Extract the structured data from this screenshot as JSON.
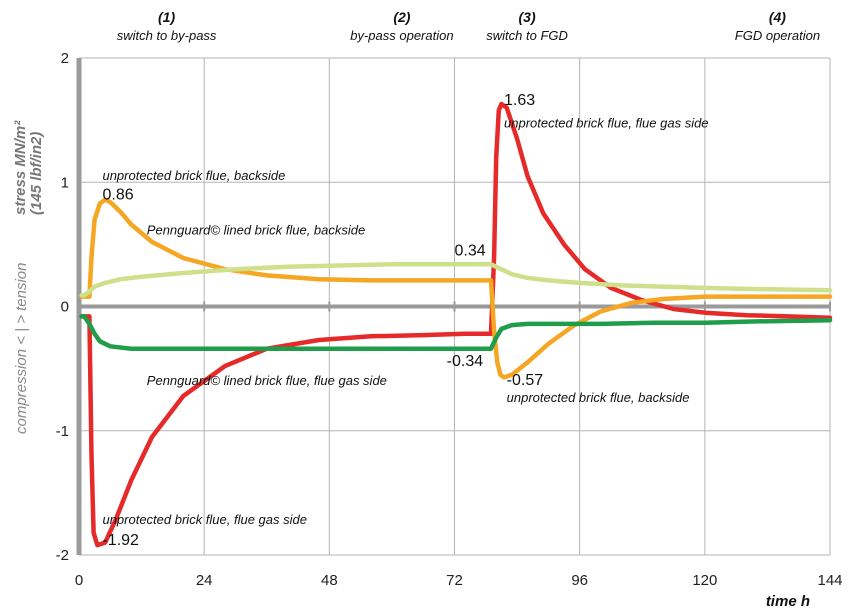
{
  "chart_data": {
    "type": "line",
    "xlabel": "time  h",
    "ylabel_lines": [
      "stress MN/m²",
      "(145 lbf/in2)"
    ],
    "ylabel_secondary": "compression < | > tension",
    "xlim": [
      0,
      144
    ],
    "ylim": [
      -2,
      2
    ],
    "x_ticks": [
      0,
      24,
      48,
      72,
      96,
      120,
      144
    ],
    "y_ticks": [
      -2,
      -1,
      0,
      1,
      2
    ],
    "grid": true,
    "phases": [
      {
        "number": "(1)",
        "label": "switch to by-pass",
        "x": 24
      },
      {
        "number": "(2)",
        "label": "by-pass operation",
        "x": 72
      },
      {
        "number": "(3)",
        "label": "switch to FGD",
        "x": 96
      },
      {
        "number": "(4)",
        "label": "FGD operation",
        "x": 144
      }
    ],
    "series": [
      {
        "name": "unprotected brick flue, flue gas side",
        "color": "#e62a2a",
        "x": [
          0.5,
          2.0,
          2.4,
          2.8,
          3.5,
          5,
          7,
          10,
          14,
          20,
          28,
          36,
          46,
          56,
          66,
          74,
          79.0,
          79.6,
          80,
          80.5,
          81,
          82,
          84,
          86,
          89,
          93,
          97,
          102,
          108,
          114,
          120,
          128,
          136,
          144
        ],
        "y": [
          -0.08,
          -0.08,
          -1.2,
          -1.82,
          -1.92,
          -1.9,
          -1.72,
          -1.4,
          -1.05,
          -0.72,
          -0.48,
          -0.34,
          -0.27,
          -0.24,
          -0.23,
          -0.22,
          -0.22,
          0.4,
          1.2,
          1.58,
          1.63,
          1.6,
          1.35,
          1.05,
          0.75,
          0.5,
          0.3,
          0.15,
          0.05,
          -0.02,
          -0.05,
          -0.07,
          -0.08,
          -0.09
        ]
      },
      {
        "name": "unprotected brick flue, backside",
        "color": "#f5a623",
        "x": [
          0.5,
          2.0,
          2.4,
          3,
          4,
          5,
          6,
          8,
          10,
          14,
          20,
          28,
          36,
          46,
          56,
          66,
          79.0,
          79.6,
          80.2,
          80.8,
          81.5,
          83,
          86,
          90,
          95,
          100,
          106,
          112,
          120,
          128,
          136,
          144
        ],
        "y": [
          0.08,
          0.08,
          0.4,
          0.7,
          0.83,
          0.86,
          0.84,
          0.76,
          0.66,
          0.52,
          0.39,
          0.3,
          0.25,
          0.22,
          0.21,
          0.21,
          0.21,
          -0.2,
          -0.45,
          -0.55,
          -0.57,
          -0.55,
          -0.45,
          -0.3,
          -0.15,
          -0.04,
          0.03,
          0.06,
          0.08,
          0.08,
          0.08,
          0.08
        ]
      },
      {
        "name": "Pennguard© lined brick flue, backside",
        "color": "#cfe08c",
        "x": [
          0.5,
          1,
          2,
          3,
          5,
          8,
          12,
          20,
          30,
          40,
          50,
          60,
          70,
          79,
          80.5,
          83,
          86,
          90,
          96,
          104,
          112,
          120,
          130,
          144
        ],
        "y": [
          0.09,
          0.09,
          0.12,
          0.16,
          0.19,
          0.22,
          0.24,
          0.27,
          0.3,
          0.32,
          0.33,
          0.34,
          0.34,
          0.34,
          0.31,
          0.26,
          0.23,
          0.21,
          0.19,
          0.17,
          0.16,
          0.15,
          0.14,
          0.13
        ]
      },
      {
        "name": "Pennguard© lined brick flue, flue gas side",
        "color": "#1f9d4a",
        "x": [
          0.5,
          1,
          2,
          3,
          4,
          6,
          10,
          20,
          40,
          60,
          79,
          80,
          81,
          83,
          86,
          92,
          100,
          110,
          120,
          130,
          144
        ],
        "y": [
          -0.08,
          -0.08,
          -0.14,
          -0.22,
          -0.28,
          -0.32,
          -0.34,
          -0.34,
          -0.34,
          -0.34,
          -0.34,
          -0.25,
          -0.18,
          -0.15,
          -0.14,
          -0.14,
          -0.14,
          -0.13,
          -0.13,
          -0.12,
          -0.11
        ]
      }
    ],
    "annotations": [
      {
        "label": "unprotected brick flue, backside",
        "value": "0.86",
        "lx": 4.5,
        "ly": 1.02,
        "vx": 4.5,
        "vy": 0.86
      },
      {
        "label": "Pennguard© lined brick flue, backside",
        "value": "",
        "lx": 13,
        "ly": 0.58,
        "vx": 0,
        "vy": 0
      },
      {
        "label": "",
        "value": "0.34",
        "lx": 0,
        "ly": 0,
        "vx": 72,
        "vy": 0.41
      },
      {
        "label": "unprotected brick flue, flue gas side",
        "value": "1.63",
        "lx": 81.5,
        "ly": 1.44,
        "vx": 81.5,
        "vy": 1.62
      },
      {
        "label": "",
        "value": "-0.34",
        "lx": 0,
        "ly": 0,
        "vx": 70.5,
        "vy": -0.48
      },
      {
        "label": "Pennguard© lined brick flue, flue gas side",
        "value": "",
        "lx": 13,
        "ly": -0.63,
        "vx": 0,
        "vy": 0
      },
      {
        "label": "unprotected brick flue, backside",
        "value": "-0.57",
        "lx": 82,
        "ly": -0.77,
        "vx": 82,
        "vy": -0.63
      },
      {
        "label": "unprotected brick flue, flue gas side",
        "value": "-1.92",
        "lx": 4.5,
        "ly": -1.75,
        "vx": 4.5,
        "vy": -1.92
      }
    ]
  }
}
